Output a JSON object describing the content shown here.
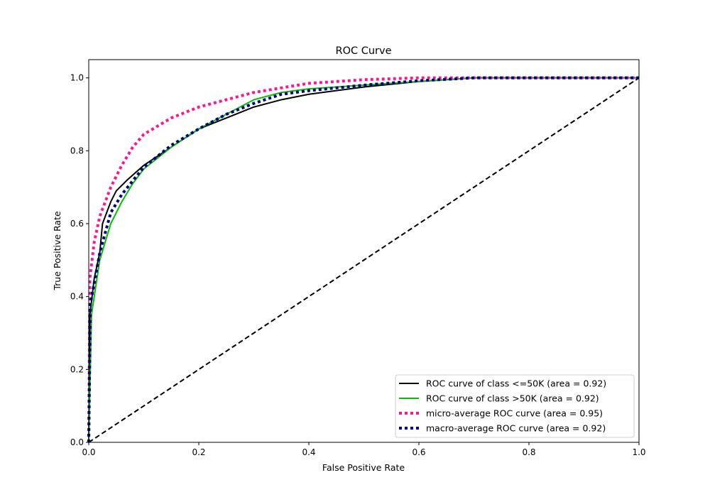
{
  "chart_data": {
    "type": "line",
    "title": "ROC Curve",
    "xlabel": "False Positive Rate",
    "ylabel": "True Positive Rate",
    "xlim": [
      0,
      1.0
    ],
    "ylim": [
      0,
      1.05
    ],
    "xticks": [
      "0.0",
      "0.2",
      "0.4",
      "0.6",
      "0.8",
      "1.0"
    ],
    "yticks": [
      "0.0",
      "0.2",
      "0.4",
      "0.6",
      "0.8",
      "1.0"
    ],
    "grid": false,
    "legend_placement": "lower-right",
    "series": [
      {
        "name": "ROC curve of class  <=50K (area = 0.92)",
        "color": "#000000",
        "style": "solid",
        "x": [
          0,
          0.002,
          0.01,
          0.02,
          0.025,
          0.03,
          0.04,
          0.05,
          0.07,
          0.1,
          0.15,
          0.2,
          0.25,
          0.3,
          0.35,
          0.4,
          0.5,
          0.6,
          0.7,
          1
        ],
        "y": [
          0,
          0.35,
          0.45,
          0.52,
          0.6,
          0.62,
          0.66,
          0.69,
          0.72,
          0.76,
          0.81,
          0.86,
          0.89,
          0.92,
          0.94,
          0.955,
          0.975,
          0.99,
          1,
          1
        ]
      },
      {
        "name": "ROC curve of class  >50K (area = 0.92)",
        "color": "#00c000",
        "style": "solid",
        "x": [
          0,
          0.005,
          0.02,
          0.04,
          0.06,
          0.08,
          0.1,
          0.15,
          0.2,
          0.25,
          0.3,
          0.35,
          0.4,
          0.5,
          0.6,
          0.7,
          1
        ],
        "y": [
          0,
          0.35,
          0.5,
          0.6,
          0.66,
          0.71,
          0.75,
          0.81,
          0.86,
          0.9,
          0.94,
          0.96,
          0.97,
          0.98,
          0.99,
          1,
          1
        ]
      },
      {
        "name": "micro-average ROC curve (area = 0.95)",
        "color": "#ff1493",
        "style": "dotted",
        "x": [
          0,
          0.002,
          0.01,
          0.02,
          0.04,
          0.06,
          0.08,
          0.1,
          0.15,
          0.2,
          0.3,
          0.4,
          0.5,
          0.6,
          1
        ],
        "y": [
          0,
          0.45,
          0.55,
          0.62,
          0.7,
          0.76,
          0.81,
          0.845,
          0.89,
          0.92,
          0.96,
          0.985,
          0.995,
          1,
          1
        ]
      },
      {
        "name": "macro-average ROC curve (area = 0.92)",
        "color": "#000080",
        "style": "dotted",
        "x": [
          0,
          0.003,
          0.02,
          0.04,
          0.06,
          0.1,
          0.15,
          0.2,
          0.25,
          0.3,
          0.35,
          0.4,
          0.5,
          0.6,
          0.7,
          1
        ],
        "y": [
          0,
          0.38,
          0.52,
          0.63,
          0.68,
          0.755,
          0.815,
          0.86,
          0.9,
          0.93,
          0.955,
          0.965,
          0.98,
          0.992,
          1,
          1
        ]
      }
    ],
    "reference_line": {
      "x": [
        0,
        1
      ],
      "y": [
        0,
        1
      ],
      "color": "#000000",
      "style": "dashed"
    }
  }
}
